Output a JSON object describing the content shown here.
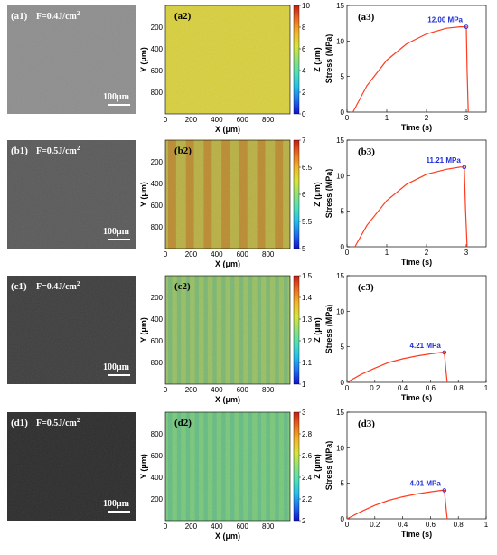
{
  "chart_data": [
    {
      "row": 1,
      "sem": {
        "tag": "(a1)",
        "fluence_label": "F=0.4J/cm",
        "fluence_sup": "2",
        "scalebar_label": "100μm",
        "tone": "#8e8e8e"
      },
      "map": {
        "type": "heatmap",
        "tag": "(a2)",
        "xlabel": "X (μm)",
        "ylabel": "Y (μm)",
        "zlabel": "Z (μm)",
        "xticks": [
          "0",
          "200",
          "400",
          "600",
          "800"
        ],
        "yticks": [
          "200",
          "400",
          "600",
          "800"
        ],
        "colorbar_ticks": [
          "0",
          "2",
          "4",
          "6",
          "8",
          "10"
        ],
        "stripes": false,
        "base_color": "#d9d03a"
      },
      "stress": {
        "type": "line",
        "tag": "(a3)",
        "xlabel": "Time (s)",
        "ylabel": "Stress (MPa)",
        "xlim": [
          0,
          3.5
        ],
        "ylim": [
          0,
          15
        ],
        "xticks": [
          "0",
          "1",
          "2",
          "3"
        ],
        "yticks": [
          "0",
          "5",
          "10",
          "15"
        ],
        "x": [
          0.15,
          0.5,
          1.0,
          1.5,
          2.0,
          2.5,
          2.85,
          3.0,
          3.02,
          3.05
        ],
        "y": [
          0,
          3.7,
          7.3,
          9.6,
          11.0,
          11.8,
          12.0,
          12.0,
          6.0,
          0
        ],
        "peak_label": "12.00 MPa",
        "peak_x": 3.0,
        "peak_y": 12.0
      }
    },
    {
      "row": 2,
      "sem": {
        "tag": "(b1)",
        "fluence_label": "F=0.5J/cm",
        "fluence_sup": "2",
        "scalebar_label": "100μm",
        "tone": "#5a5a5a"
      },
      "map": {
        "type": "heatmap",
        "tag": "(b2)",
        "xlabel": "X (μm)",
        "ylabel": "Y (μm)",
        "zlabel": "Z (μm)",
        "xticks": [
          "0",
          "200",
          "400",
          "600",
          "800"
        ],
        "yticks": [
          "200",
          "400",
          "600",
          "800"
        ],
        "colorbar_ticks": [
          "5",
          "5.5",
          "6",
          "6.5",
          "7"
        ],
        "stripes": true,
        "base_color": "#b8b040"
      },
      "stress": {
        "type": "line",
        "tag": "(b3)",
        "xlabel": "Time (s)",
        "ylabel": "Stress (MPa)",
        "xlim": [
          0,
          3.5
        ],
        "ylim": [
          0,
          15
        ],
        "xticks": [
          "0",
          "1",
          "2",
          "3"
        ],
        "yticks": [
          "0",
          "5",
          "10",
          "15"
        ],
        "x": [
          0.2,
          0.5,
          1.0,
          1.5,
          2.0,
          2.5,
          2.85,
          2.95,
          2.98,
          3.02
        ],
        "y": [
          0,
          3.0,
          6.5,
          8.8,
          10.2,
          10.9,
          11.21,
          11.21,
          5.5,
          0
        ],
        "peak_label": "11.21 MPa",
        "peak_x": 2.95,
        "peak_y": 11.21
      }
    },
    {
      "row": 3,
      "sem": {
        "tag": "(c1)",
        "fluence_label": "F=0.4J/cm",
        "fluence_sup": "2",
        "scalebar_label": "100μm",
        "tone": "#3e3e3e"
      },
      "map": {
        "type": "heatmap",
        "tag": "(c2)",
        "xlabel": "X (μm)",
        "ylabel": "Y (μm)",
        "zlabel": "Z (μm)",
        "xticks": [
          "0",
          "200",
          "400",
          "600",
          "800"
        ],
        "yticks": [
          "200",
          "400",
          "600",
          "800"
        ],
        "colorbar_ticks": [
          "1",
          "1.1",
          "1.2",
          "1.3",
          "1.4",
          "1.5"
        ],
        "stripes": true,
        "base_color": "#98c060"
      },
      "stress": {
        "type": "line",
        "tag": "(c3)",
        "xlabel": "Time (s)",
        "ylabel": "Stress (MPa)",
        "xlim": [
          0,
          1
        ],
        "ylim": [
          0,
          15
        ],
        "xticks": [
          "0",
          "0.2",
          "0.4",
          "0.6",
          "0.8",
          "1"
        ],
        "yticks": [
          "0",
          "5",
          "10",
          "15"
        ],
        "x": [
          0.0,
          0.1,
          0.2,
          0.3,
          0.4,
          0.5,
          0.6,
          0.68,
          0.7,
          0.71,
          0.72
        ],
        "y": [
          0,
          1.1,
          2.0,
          2.8,
          3.3,
          3.7,
          4.0,
          4.21,
          4.21,
          2.0,
          0
        ],
        "peak_label": "4.21 MPa",
        "peak_x": 0.7,
        "peak_y": 4.21
      }
    },
    {
      "row": 4,
      "sem": {
        "tag": "(d1)",
        "fluence_label": "F=0.5J/cm",
        "fluence_sup": "2",
        "scalebar_label": "100μm",
        "tone": "#2c2c2c"
      },
      "map": {
        "type": "heatmap",
        "tag": "(d2)",
        "xlabel": "X (μm)",
        "ylabel": "Y (μm)",
        "zlabel": "Z (μm)",
        "xticks": [
          "0",
          "200",
          "400",
          "600",
          "800"
        ],
        "yticks": [
          "800",
          "600",
          "400",
          "200"
        ],
        "colorbar_ticks": [
          "2",
          "2.2",
          "2.4",
          "2.6",
          "2.8",
          "3"
        ],
        "stripes": true,
        "base_color": "#78c878"
      },
      "stress": {
        "type": "line",
        "tag": "(d3)",
        "xlabel": "Time (s)",
        "ylabel": "Stress (MPa)",
        "xlim": [
          0,
          1
        ],
        "ylim": [
          0,
          15
        ],
        "xticks": [
          "0",
          "0.2",
          "0.4",
          "0.6",
          "0.8",
          "1"
        ],
        "yticks": [
          "0",
          "5",
          "10",
          "15"
        ],
        "x": [
          0.0,
          0.1,
          0.2,
          0.3,
          0.4,
          0.5,
          0.6,
          0.68,
          0.7,
          0.71,
          0.72
        ],
        "y": [
          0,
          1.0,
          1.9,
          2.6,
          3.1,
          3.5,
          3.8,
          4.01,
          4.01,
          2.0,
          0
        ],
        "peak_label": "4.01 MPa",
        "peak_x": 0.7,
        "peak_y": 4.01
      }
    }
  ],
  "colors": {
    "curve": "#ff3b1f",
    "peak_marker": "#2233ee",
    "peak_label": "#1f2fd6",
    "colormap": [
      "#1010d0",
      "#1d6ef2",
      "#23c0ec",
      "#4fe0b8",
      "#8fe27a",
      "#d8e43a",
      "#f2b52a",
      "#ec6a1f",
      "#c81c14"
    ]
  }
}
